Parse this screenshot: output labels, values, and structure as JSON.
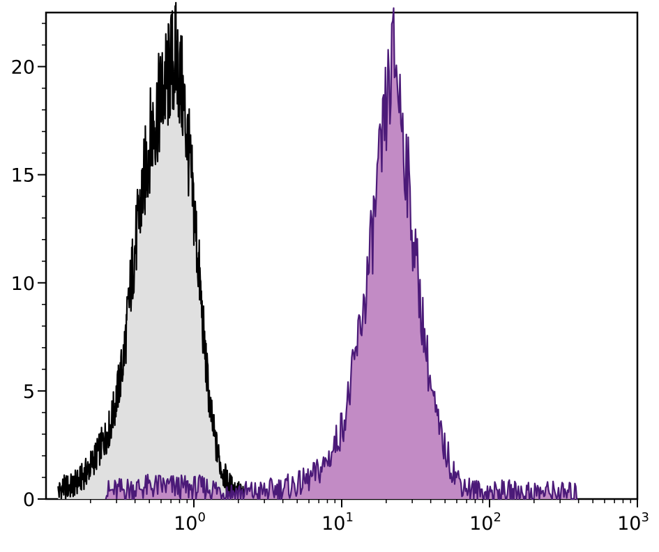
{
  "chart_data": {
    "type": "area",
    "title": "",
    "xlabel": "",
    "ylabel": "",
    "xscale": "log",
    "xlim": [
      0.1,
      1000
    ],
    "ylim": [
      0,
      22.5
    ],
    "grid": false,
    "legend": "none",
    "x_ticks": [
      {
        "base": "10",
        "exp": "0",
        "value": 1
      },
      {
        "base": "10",
        "exp": "1",
        "value": 10
      },
      {
        "base": "10",
        "exp": "2",
        "value": 100
      },
      {
        "base": "10",
        "exp": "3",
        "value": 1000
      }
    ],
    "y_ticks": [
      {
        "label": "0",
        "value": 0
      },
      {
        "label": "5",
        "value": 5
      },
      {
        "label": "10",
        "value": 10
      },
      {
        "label": "15",
        "value": 15
      },
      {
        "label": "20",
        "value": 20
      }
    ],
    "series": [
      {
        "role": "control",
        "fill": "#e0e0e0",
        "stroke": "#000000",
        "points": [
          [
            0.12,
            0.3
          ],
          [
            0.13,
            0.5
          ],
          [
            0.15,
            0.6
          ],
          [
            0.17,
            0.9
          ],
          [
            0.19,
            1.3
          ],
          [
            0.21,
            1.8
          ],
          [
            0.23,
            2.3
          ],
          [
            0.25,
            2.8
          ],
          [
            0.27,
            3.3
          ],
          [
            0.29,
            4.2
          ],
          [
            0.31,
            5.2
          ],
          [
            0.33,
            6.2
          ],
          [
            0.35,
            7.8
          ],
          [
            0.37,
            9.6
          ],
          [
            0.39,
            11.0
          ],
          [
            0.42,
            12.7
          ],
          [
            0.45,
            14.2
          ],
          [
            0.48,
            15.6
          ],
          [
            0.51,
            16.8
          ],
          [
            0.55,
            17.6
          ],
          [
            0.59,
            18.3
          ],
          [
            0.63,
            19.0
          ],
          [
            0.67,
            19.5
          ],
          [
            0.71,
            20.1
          ],
          [
            0.75,
            20.4
          ],
          [
            0.79,
            19.8
          ],
          [
            0.84,
            18.7
          ],
          [
            0.88,
            17.4
          ],
          [
            0.93,
            15.8
          ],
          [
            0.98,
            14.1
          ],
          [
            1.03,
            12.4
          ],
          [
            1.09,
            10.3
          ],
          [
            1.15,
            8.0
          ],
          [
            1.22,
            5.9
          ],
          [
            1.3,
            4.0
          ],
          [
            1.4,
            2.6
          ],
          [
            1.52,
            1.5
          ],
          [
            1.65,
            0.9
          ],
          [
            1.8,
            0.5
          ],
          [
            2.0,
            0.3
          ],
          [
            2.2,
            0.1
          ]
        ]
      },
      {
        "role": "stained",
        "fill": "#c28bc5",
        "stroke": "#4b1a78",
        "points": [
          [
            0.25,
            0.3
          ],
          [
            0.4,
            0.5
          ],
          [
            0.6,
            0.6
          ],
          [
            0.9,
            0.5
          ],
          [
            1.3,
            0.5
          ],
          [
            1.8,
            0.3
          ],
          [
            2.8,
            0.3
          ],
          [
            4.0,
            0.5
          ],
          [
            5.2,
            0.7
          ],
          [
            6.3,
            1.0
          ],
          [
            7.5,
            1.5
          ],
          [
            8.5,
            2.1
          ],
          [
            9.5,
            2.9
          ],
          [
            10.5,
            3.8
          ],
          [
            11.5,
            5.2
          ],
          [
            12.5,
            6.7
          ],
          [
            13.5,
            8.2
          ],
          [
            14.5,
            9.5
          ],
          [
            15.5,
            11.1
          ],
          [
            16.5,
            12.8
          ],
          [
            17.5,
            14.4
          ],
          [
            18.5,
            15.8
          ],
          [
            19.5,
            17.3
          ],
          [
            20.5,
            18.6
          ],
          [
            21.5,
            19.6
          ],
          [
            22.5,
            20.4
          ],
          [
            23.5,
            19.9
          ],
          [
            24.5,
            18.7
          ],
          [
            26.0,
            17.1
          ],
          [
            27.5,
            15.4
          ],
          [
            29.0,
            13.6
          ],
          [
            31.0,
            11.7
          ],
          [
            33.0,
            10.0
          ],
          [
            35.5,
            8.1
          ],
          [
            38.0,
            6.4
          ],
          [
            41.0,
            4.8
          ],
          [
            45.0,
            3.3
          ],
          [
            50.0,
            2.3
          ],
          [
            56.0,
            1.4
          ],
          [
            63.0,
            0.8
          ],
          [
            72.0,
            0.5
          ],
          [
            85.0,
            0.3
          ],
          [
            110.0,
            0.3
          ],
          [
            160.0,
            0.3
          ],
          [
            250.0,
            0.3
          ],
          [
            400.0,
            0.2
          ]
        ]
      }
    ]
  }
}
